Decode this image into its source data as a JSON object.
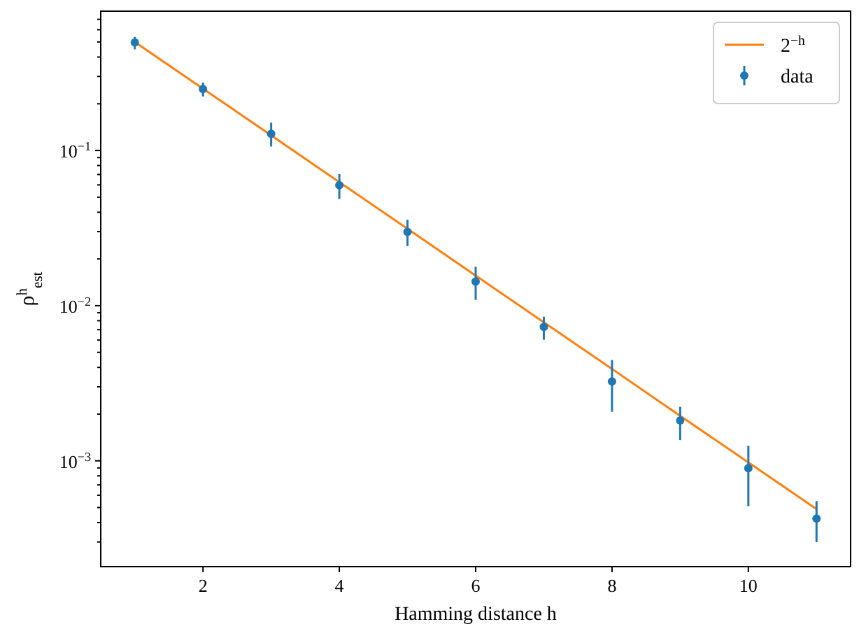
{
  "chart_data": {
    "type": "line",
    "xlabel": "Hamming distance h",
    "ylabel": "ρ$^{h}$$_{est}$",
    "log": "y",
    "legend": "top right",
    "xlim": [
      0.5,
      11.5
    ],
    "xticks": [
      2,
      4,
      6,
      8,
      10
    ],
    "ylim": [
      0.000208,
      0.79
    ],
    "yticks": [
      {
        "value": 0.0003,
        "label": null
      },
      {
        "value": 0.0004,
        "label": null
      },
      {
        "value": 0.0005,
        "label": null
      },
      {
        "value": 0.0006,
        "label": null
      },
      {
        "value": 0.0007,
        "label": null
      },
      {
        "value": 0.0008,
        "label": null
      },
      {
        "value": 0.0009,
        "label": null
      },
      {
        "value": 0.001,
        "label": "10$^{−3}$"
      },
      {
        "value": 0.002,
        "label": null
      },
      {
        "value": 0.003,
        "label": null
      },
      {
        "value": 0.004,
        "label": null
      },
      {
        "value": 0.005,
        "label": null
      },
      {
        "value": 0.006,
        "label": null
      },
      {
        "value": 0.007,
        "label": null
      },
      {
        "value": 0.008,
        "label": null
      },
      {
        "value": 0.009,
        "label": null
      },
      {
        "value": 0.01,
        "label": "10$^{−2}$"
      },
      {
        "value": 0.02,
        "label": null
      },
      {
        "value": 0.03,
        "label": null
      },
      {
        "value": 0.04,
        "label": null
      },
      {
        "value": 0.05,
        "label": null
      },
      {
        "value": 0.06,
        "label": null
      },
      {
        "value": 0.07,
        "label": null
      },
      {
        "value": 0.08,
        "label": null
      },
      {
        "value": 0.09,
        "label": null
      },
      {
        "value": 0.1,
        "label": "10$^{−1}$"
      },
      {
        "value": 0.2,
        "label": null
      },
      {
        "value": 0.3,
        "label": null
      },
      {
        "value": 0.4,
        "label": null
      },
      {
        "value": 0.5,
        "label": null
      },
      {
        "value": 0.6,
        "label": null
      },
      {
        "value": 0.7,
        "label": null
      }
    ],
    "x": [
      1,
      2,
      3,
      4,
      5,
      6,
      7,
      8,
      9,
      10,
      11
    ],
    "series": [
      {
        "name": "2$^{−h}$",
        "color": "#ff7f0e",
        "line_style": "solid",
        "marker": "none",
        "values": [
          0.5,
          0.25,
          0.125,
          0.0625,
          0.0313,
          0.0156,
          0.00781,
          0.00391,
          0.00195,
          0.000977,
          0.000488
        ]
      },
      {
        "name": "data",
        "type": "scatter",
        "color": "#1f77b4",
        "marker": "circle",
        "values": [
          0.497,
          0.249,
          0.128,
          0.0598,
          0.0299,
          0.0143,
          0.0073,
          0.00325,
          0.00182,
          0.000897,
          0.000425
        ],
        "errors": [
          [
            0.449,
            0.54
          ],
          [
            0.223,
            0.274
          ],
          [
            0.106,
            0.151
          ],
          [
            0.0487,
            0.0705
          ],
          [
            0.0242,
            0.0358
          ],
          [
            0.0109,
            0.0178
          ],
          [
            0.00603,
            0.00849
          ],
          [
            0.00207,
            0.00446
          ],
          [
            0.00136,
            0.00223
          ],
          [
            0.00051,
            0.00125
          ],
          [
            0.000299,
            0.00055
          ]
        ]
      }
    ]
  }
}
